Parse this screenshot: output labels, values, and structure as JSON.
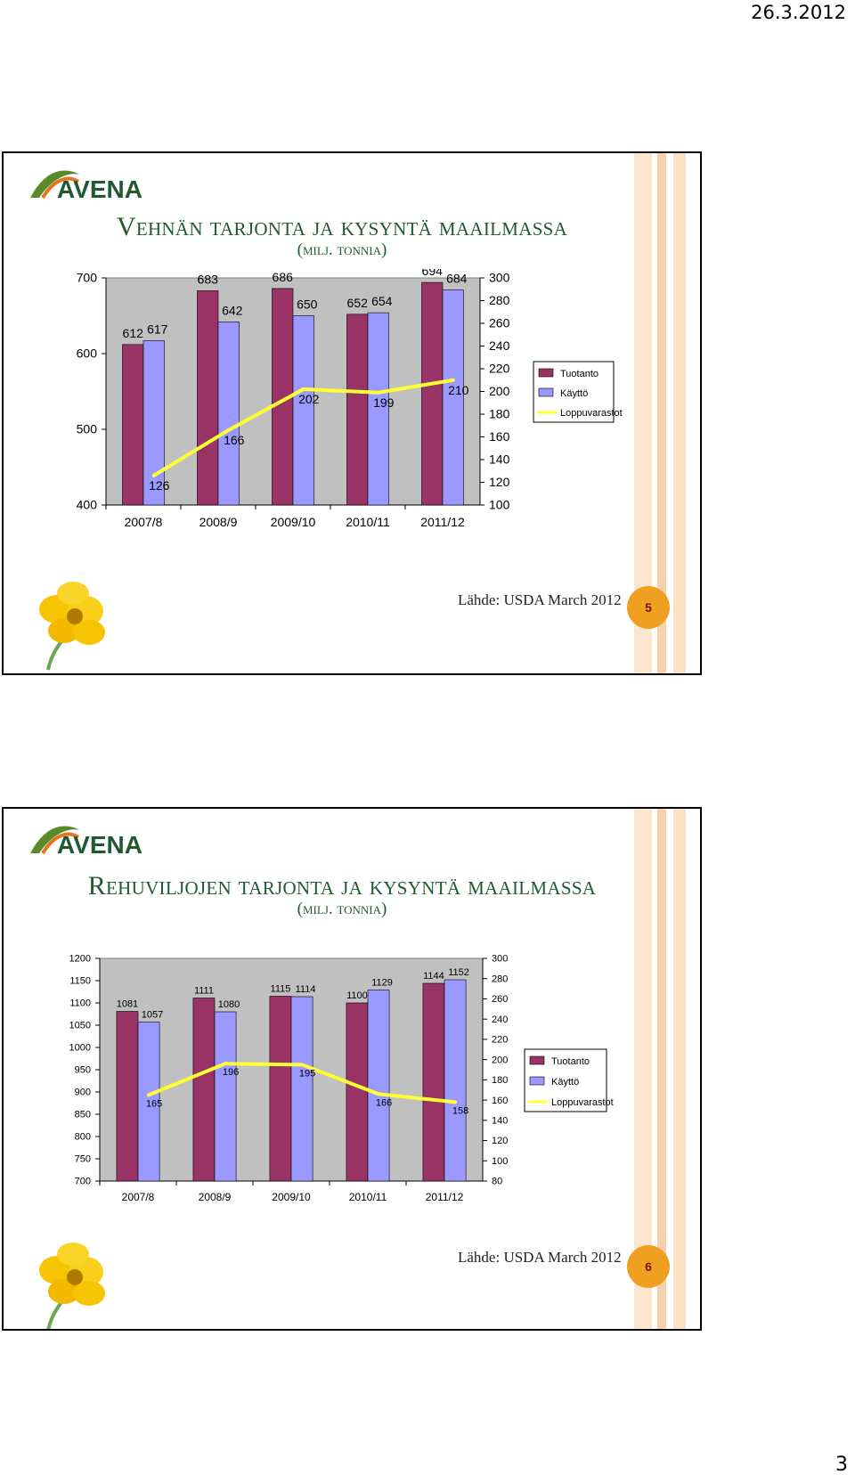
{
  "header": {
    "date": "26.3.2012"
  },
  "footer": {
    "page_number": "3"
  },
  "logo_text": "AVENA",
  "colors": {
    "title": "#1f5a2e",
    "production": "#993366",
    "use": "#9999ff",
    "stocks": "#ffff33",
    "plot_bg": "#c0c0c0",
    "badge": "#f0a020"
  },
  "slides": [
    {
      "title_main": "Vehnän tarjonta ja kysyntä maailmassa",
      "title_sub": "(milj. tonnia)",
      "source": "Lähde: USDA March 2012",
      "slide_number": "5"
    },
    {
      "title_main": "Rehuviljojen tarjonta ja kysyntä maailmassa",
      "title_sub": "(milj. tonnia)",
      "source": "Lähde: USDA March 2012",
      "slide_number": "6"
    }
  ],
  "chart_data": [
    {
      "type": "bar",
      "categories": [
        "2007/8",
        "2008/9",
        "2009/10",
        "2010/11",
        "2011/12"
      ],
      "series": [
        {
          "name": "Tuotanto",
          "type": "bar",
          "axis": "left",
          "values": [
            612,
            683,
            686,
            652,
            694
          ]
        },
        {
          "name": "Käyttö",
          "type": "bar",
          "axis": "left",
          "values": [
            617,
            642,
            650,
            654,
            684
          ]
        },
        {
          "name": "Loppuvarastot",
          "type": "line",
          "axis": "right",
          "values": [
            126,
            166,
            202,
            199,
            210
          ]
        }
      ],
      "y_left": {
        "min": 400,
        "max": 700,
        "ticks": [
          400,
          500,
          600,
          700
        ]
      },
      "y_right": {
        "min": 100,
        "max": 300,
        "ticks": [
          100,
          120,
          140,
          160,
          180,
          200,
          220,
          240,
          260,
          280,
          300
        ]
      },
      "legend": [
        "Tuotanto",
        "Käyttö",
        "Loppuvarastot"
      ],
      "legend_position": "right",
      "grid": false
    },
    {
      "type": "bar",
      "categories": [
        "2007/8",
        "2008/9",
        "2009/10",
        "2010/11",
        "2011/12"
      ],
      "series": [
        {
          "name": "Tuotanto",
          "type": "bar",
          "axis": "left",
          "values": [
            1081,
            1111,
            1115,
            1100,
            1144
          ]
        },
        {
          "name": "Käyttö",
          "type": "bar",
          "axis": "left",
          "values": [
            1057,
            1080,
            1114,
            1129,
            1152
          ]
        },
        {
          "name": "Loppuvarastot",
          "type": "line",
          "axis": "right",
          "values": [
            165,
            196,
            195,
            166,
            158
          ]
        }
      ],
      "y_left": {
        "min": 700,
        "max": 1200,
        "ticks": [
          700,
          750,
          800,
          850,
          900,
          950,
          1000,
          1050,
          1100,
          1150,
          1200
        ]
      },
      "y_right": {
        "min": 80,
        "max": 300,
        "ticks": [
          80,
          100,
          120,
          140,
          160,
          180,
          200,
          220,
          240,
          260,
          280,
          300
        ]
      },
      "legend": [
        "Tuotanto",
        "Käyttö",
        "Loppuvarastot"
      ],
      "legend_position": "right",
      "grid": false
    }
  ]
}
